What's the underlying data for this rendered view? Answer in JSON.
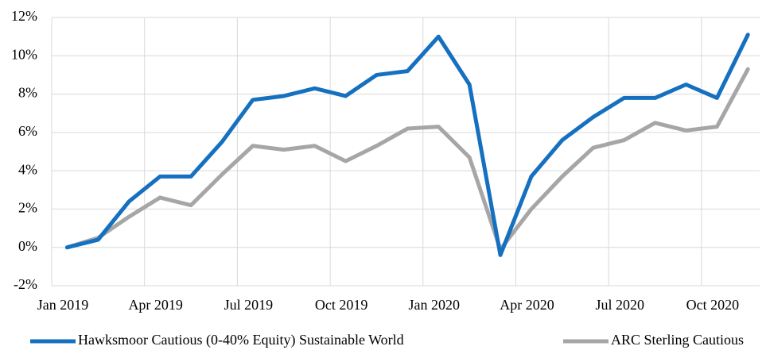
{
  "chart_data": {
    "type": "line",
    "categories": [
      "Jan 2019",
      null,
      null,
      "Apr 2019",
      null,
      null,
      "Jul 2019",
      null,
      null,
      "Oct 2019",
      null,
      null,
      "Jan 2020",
      null,
      null,
      "Apr 2020",
      null,
      null,
      "Jul 2020",
      null,
      null,
      "Oct 2020",
      null
    ],
    "series": [
      {
        "name": "Hawksmoor Cautious (0-40% Equity) Sustainable World",
        "color": "#1570c0",
        "values": [
          0,
          0.4,
          2.4,
          3.7,
          3.7,
          5.5,
          7.7,
          7.9,
          8.3,
          7.9,
          9.0,
          9.2,
          11.0,
          8.5,
          -0.4,
          3.7,
          5.6,
          6.8,
          7.8,
          7.8,
          8.5,
          7.8,
          11.1
        ]
      },
      {
        "name": "ARC Sterling Cautious",
        "color": "#a6a6a6",
        "values": [
          0,
          0.5,
          1.6,
          2.6,
          2.2,
          3.8,
          5.3,
          5.1,
          5.3,
          4.5,
          5.3,
          6.2,
          6.3,
          4.7,
          -0.1,
          2.0,
          3.7,
          5.2,
          5.6,
          6.5,
          6.1,
          6.3,
          9.3
        ]
      }
    ],
    "ylim": [
      -2,
      12
    ],
    "yticks": [
      {
        "value": -2,
        "label": "-2%"
      },
      {
        "value": 0,
        "label": "0%"
      },
      {
        "value": 2,
        "label": "2%"
      },
      {
        "value": 4,
        "label": "4%"
      },
      {
        "value": 6,
        "label": "6%"
      },
      {
        "value": 8,
        "label": "8%"
      },
      {
        "value": 10,
        "label": "10%"
      },
      {
        "value": 12,
        "label": "12%"
      }
    ],
    "grid": true,
    "legend": "bottom"
  }
}
